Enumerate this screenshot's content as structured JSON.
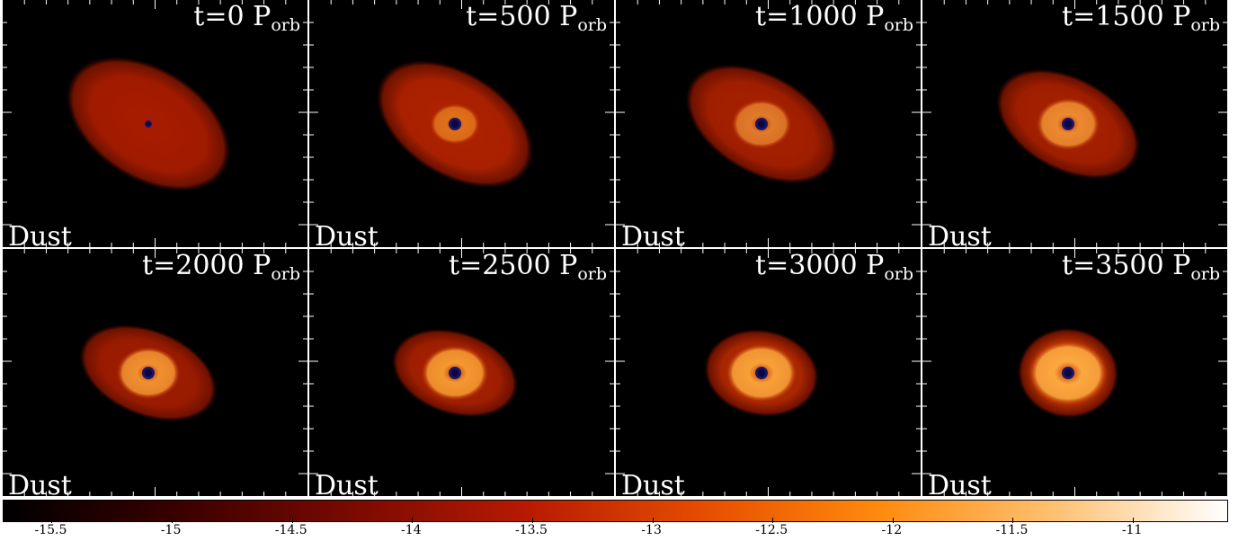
{
  "panels": [
    {
      "time": "t=0 P",
      "sub": "orb",
      "tag": "Dust"
    },
    {
      "time": "t=500 P",
      "sub": "orb",
      "tag": "Dust"
    },
    {
      "time": "t=1000 P",
      "sub": "orb",
      "tag": "Dust"
    },
    {
      "time": "t=1500 P",
      "sub": "orb",
      "tag": "Dust"
    },
    {
      "time": "t=2000 P",
      "sub": "orb",
      "tag": "Dust"
    },
    {
      "time": "t=2500 P",
      "sub": "orb",
      "tag": "Dust"
    },
    {
      "time": "t=3000 P",
      "sub": "orb",
      "tag": "Dust"
    },
    {
      "time": "t=3500 P",
      "sub": "orb",
      "tag": "Dust"
    }
  ],
  "colorbar": {
    "ticks": [
      "-15.5",
      "-15",
      "-14.5",
      "-14",
      "-13.5",
      "-13",
      "-12.5",
      "-12",
      "-11.5",
      "-11"
    ],
    "range": [
      -15.7,
      -10.6
    ],
    "colors": [
      "#000000",
      "#3a0000",
      "#7a0a00",
      "#b81a00",
      "#e64d00",
      "#ff8a0d",
      "#ffc070",
      "#ffffff"
    ]
  }
}
